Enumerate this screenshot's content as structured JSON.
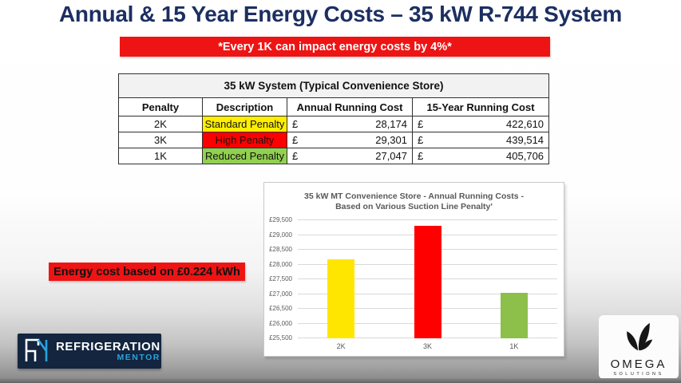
{
  "title": "Annual & 15 Year Energy Costs – 35 kW R-744 System",
  "impact_banner": "*Every 1K can impact energy costs by 4%*",
  "energy_note": "Energy cost based on £0.224 kWh",
  "table": {
    "caption": "35 kW System (Typical Convenience Store)",
    "headers": [
      "Penalty",
      "Description",
      "Annual Running Cost",
      "15-Year Running Cost"
    ],
    "currency": "£",
    "rows": [
      {
        "penalty": "2K",
        "description": "Standard Penalty",
        "highlight": "#ffee00",
        "annual": "28,174",
        "fifteen_year": "422,610"
      },
      {
        "penalty": "3K",
        "description": "High Penalty",
        "highlight": "#ff0000",
        "annual": "29,301",
        "fifteen_year": "439,514"
      },
      {
        "penalty": "1K",
        "description": "Reduced Penalty",
        "highlight": "#92d050",
        "annual": "27,047",
        "fifteen_year": "405,706"
      }
    ]
  },
  "chart_data": {
    "type": "bar",
    "title": "35 kW MT Convenience Store - Annual Running Costs - Based on Various Suction Line Penalty'",
    "title_lines": [
      "35 kW MT Convenience Store - Annual Running Costs -",
      "Based on Various Suction Line Penalty'"
    ],
    "categories": [
      "2K",
      "3K",
      "1K"
    ],
    "values": [
      28174,
      29301,
      27047
    ],
    "bar_colors": [
      "#ffe600",
      "#ff0000",
      "#8dbf4b"
    ],
    "ylim": [
      25500,
      29500
    ],
    "ytick_step": 500,
    "ytick_labels": [
      "£25,500",
      "£26,000",
      "£26,500",
      "£27,000",
      "£27,500",
      "£28,000",
      "£28,500",
      "£29,000",
      "£29,500"
    ],
    "grid": true,
    "legend": "none",
    "xlabel": "",
    "ylabel": ""
  },
  "logos": {
    "refrigeration_mentor": {
      "line1": "REFRIGERATION",
      "line2": "MENTOR"
    },
    "omega": {
      "name": "OMEGA",
      "subtitle": "SOLUTIONS"
    }
  },
  "colors": {
    "title_navy": "#1c2f62",
    "banner_red": "#ee1414",
    "table_caption_bg": "#f2f2f2",
    "mentor_navy": "#13253f",
    "mentor_blue": "#2aa2de",
    "chart_text": "#595959",
    "gridline": "#d9d9d9"
  }
}
